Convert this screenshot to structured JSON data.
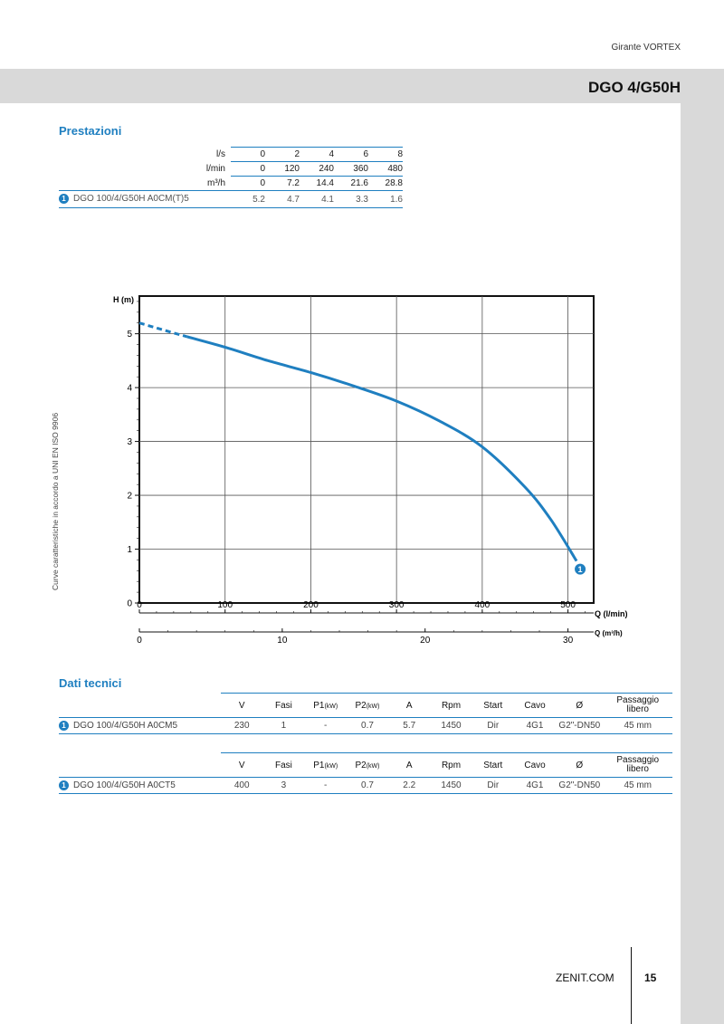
{
  "header": {
    "category": "Girante VORTEX",
    "model": "DGO 4/G50H"
  },
  "performance": {
    "title": "Prestazioni",
    "rows": [
      {
        "unit": "l/s",
        "values": [
          "0",
          "2",
          "4",
          "6",
          "8"
        ]
      },
      {
        "unit": "l/min",
        "values": [
          "0",
          "120",
          "240",
          "360",
          "480"
        ]
      },
      {
        "unit": "m³/h",
        "values": [
          "0",
          "7.2",
          "14.4",
          "21.6",
          "28.8"
        ]
      }
    ],
    "model": {
      "num": "1",
      "name": "DGO 100/4/G50H A0CM(T)5",
      "values": [
        "5.2",
        "4.7",
        "4.1",
        "3.3",
        "1.6"
      ]
    }
  },
  "chart_data": {
    "type": "line",
    "ylabel": "H (m)",
    "xlabel": "Q (l/min)",
    "xlabel2": "Q (m³/h)",
    "xlim": [
      0,
      530
    ],
    "ylim": [
      0,
      5.7
    ],
    "xticks": [
      0,
      100,
      200,
      300,
      400,
      500
    ],
    "yticks": [
      0,
      1,
      2,
      3,
      4,
      5
    ],
    "x2ticks": [
      0,
      10,
      20,
      30
    ],
    "side_note": "Curve caratteristiche in accordo a UNI EN ISO 9906",
    "grid": true,
    "series": [
      {
        "label": "1",
        "color": "#1f7fc0",
        "dashed_until": 55,
        "x": [
          0,
          50,
          100,
          150,
          200,
          250,
          300,
          350,
          400,
          450,
          480,
          510
        ],
        "y": [
          5.2,
          4.97,
          4.75,
          4.5,
          4.28,
          4.03,
          3.75,
          3.38,
          2.9,
          2.15,
          1.55,
          0.78
        ]
      }
    ]
  },
  "tech": {
    "title": "Dati tecnici",
    "headers": {
      "v": "V",
      "fasi": "Fasi",
      "p1": "P1",
      "p1_unit": "(kW)",
      "p2": "P2",
      "p2_unit": "(kW)",
      "a": "A",
      "rpm": "Rpm",
      "start": "Start",
      "cavo": "Cavo",
      "diam": "Ø",
      "pass1": "Passaggio",
      "pass2": "libero"
    },
    "rows": [
      {
        "num": "1",
        "name": "DGO 100/4/G50H A0CM5",
        "v": "230",
        "fasi": "1",
        "p1": "-",
        "p2": "0.7",
        "a": "5.7",
        "rpm": "1450",
        "start": "Dir",
        "cavo": "4G1",
        "diam": "G2\"-DN50",
        "pass": "45 mm"
      },
      {
        "num": "1",
        "name": "DGO 100/4/G50H A0CT5",
        "v": "400",
        "fasi": "3",
        "p1": "-",
        "p2": "0.7",
        "a": "2.2",
        "rpm": "1450",
        "start": "Dir",
        "cavo": "4G1",
        "diam": "G2\"-DN50",
        "pass": "45 mm"
      }
    ]
  },
  "footer": {
    "brand": "ZENIT.COM",
    "page": "15"
  }
}
